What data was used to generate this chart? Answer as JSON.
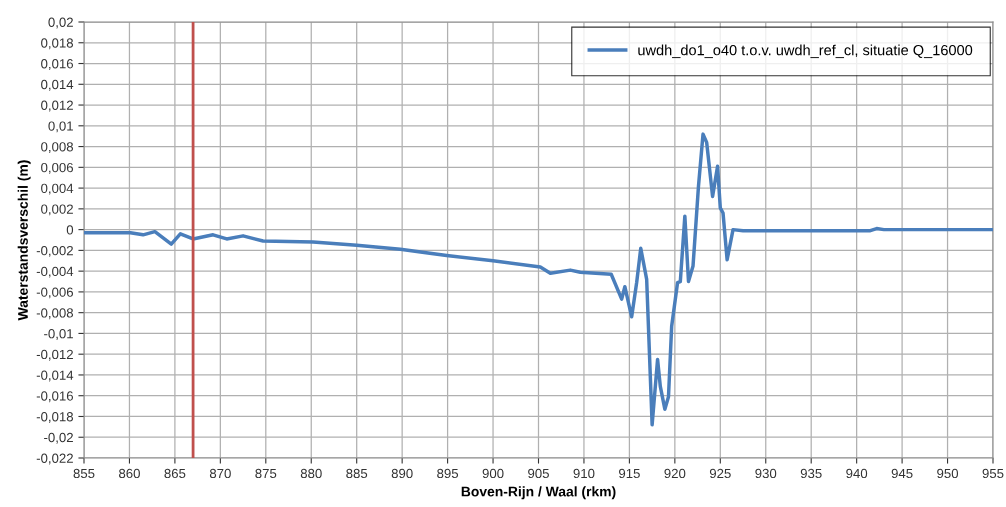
{
  "chart_data": {
    "type": "line",
    "xlabel": "Boven-Rijn / Waal (rkm)",
    "ylabel": "Waterstandsverschil (m)",
    "series": [
      {
        "name": "uwdh_do1_o40 t.o.v. uwdh_ref_cl, situatie Q_16000",
        "color": "#4a7ebb",
        "x": [
          855,
          860.1,
          861.5,
          862.8,
          864.6,
          865.6,
          867.0,
          869.2,
          870.7,
          872.5,
          874.7,
          880.2,
          885.0,
          889.8,
          894.9,
          900.0,
          905.2,
          906.3,
          908.5,
          909.6,
          913.0,
          914.15,
          914.5,
          915.25,
          915.8,
          916.25,
          916.9,
          917.5,
          918.1,
          918.4,
          918.9,
          919.3,
          919.65,
          920.3,
          920.6,
          921.1,
          921.5,
          922.0,
          922.6,
          923.1,
          923.5,
          924.15,
          924.7,
          925.0,
          925.3,
          925.75,
          926.4,
          927.5,
          935,
          941.5,
          942.2,
          943,
          950,
          955
        ],
        "values": [
          -0.0003,
          -0.0003,
          -0.0005,
          -0.0002,
          -0.0014,
          -0.0004,
          -0.0009,
          -0.0005,
          -0.0009,
          -0.0006,
          -0.0011,
          -0.0012,
          -0.0015,
          -0.0019,
          -0.0025,
          -0.003,
          -0.0036,
          -0.0042,
          -0.0039,
          -0.0041,
          -0.0043,
          -0.0067,
          -0.0055,
          -0.0084,
          -0.0051,
          -0.0018,
          -0.0048,
          -0.0188,
          -0.0125,
          -0.0151,
          -0.0173,
          -0.0161,
          -0.0093,
          -0.0051,
          -0.005,
          0.0013,
          -0.005,
          -0.0035,
          0.0042,
          0.0092,
          0.0084,
          0.0032,
          0.0061,
          0.0021,
          0.0016,
          -0.0029,
          0.0,
          -0.0001,
          -0.0001,
          -0.0001,
          0.0001,
          0.0,
          0.0,
          0.0
        ]
      }
    ],
    "ref_lines": [
      {
        "axis": "x",
        "value": 867,
        "color": "#c0504d"
      }
    ],
    "xlim": [
      855,
      955
    ],
    "xticks": [
      855,
      860,
      865,
      870,
      875,
      880,
      885,
      890,
      895,
      900,
      905,
      910,
      915,
      920,
      925,
      930,
      935,
      940,
      945,
      950,
      955
    ],
    "ylim": [
      -0.022,
      0.02
    ],
    "yticks": [
      {
        "value": -0.022,
        "label": "-0,022"
      },
      {
        "value": -0.02,
        "label": "-0,02"
      },
      {
        "value": -0.018,
        "label": "-0,018"
      },
      {
        "value": -0.016,
        "label": "-0,016"
      },
      {
        "value": -0.014,
        "label": "-0,014"
      },
      {
        "value": -0.012,
        "label": "-0,012"
      },
      {
        "value": -0.01,
        "label": "-0,01"
      },
      {
        "value": -0.008,
        "label": "-0,008"
      },
      {
        "value": -0.006,
        "label": "-0,006"
      },
      {
        "value": -0.004,
        "label": "-0,004"
      },
      {
        "value": -0.002,
        "label": "-0,002"
      },
      {
        "value": 0,
        "label": "0"
      },
      {
        "value": 0.002,
        "label": "0,002"
      },
      {
        "value": 0.004,
        "label": "0,004"
      },
      {
        "value": 0.006,
        "label": "0,006"
      },
      {
        "value": 0.008,
        "label": "0,008"
      },
      {
        "value": 0.01,
        "label": "0,01"
      },
      {
        "value": 0.012,
        "label": "0,012"
      },
      {
        "value": 0.014,
        "label": "0,014"
      },
      {
        "value": 0.016,
        "label": "0,016"
      },
      {
        "value": 0.018,
        "label": "0,018"
      },
      {
        "value": 0.02,
        "label": "0,02"
      }
    ],
    "grid": true,
    "legend": "top right",
    "marker": "none",
    "line_style": "solid"
  }
}
